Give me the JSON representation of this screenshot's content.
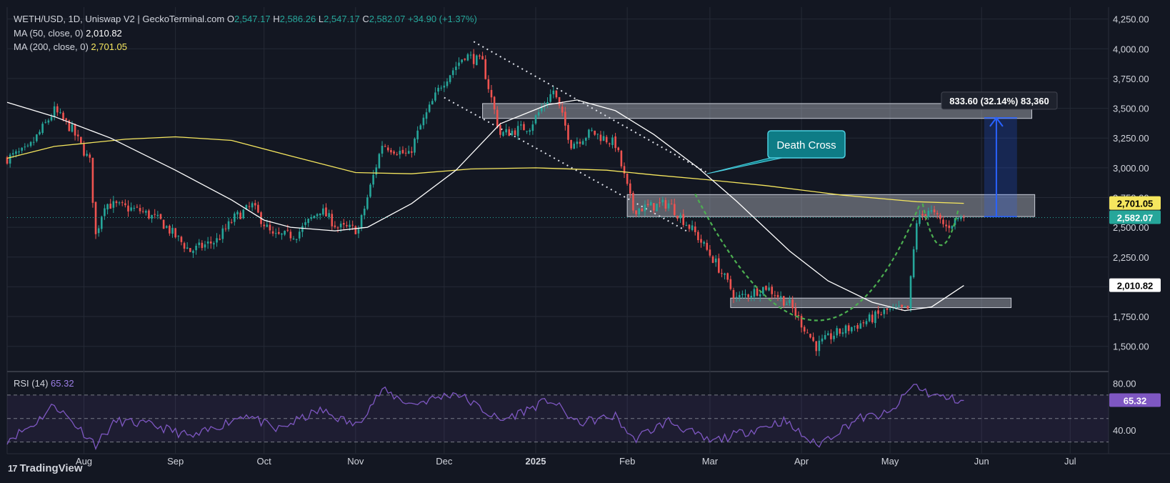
{
  "header": {
    "symbol": "WETH/USD, 1D, Uniswap V2 | GeckoTerminal.com",
    "o_label": "O",
    "o_value": "2,547.17",
    "h_label": "H",
    "h_value": "2,586.26",
    "l_label": "L",
    "l_value": "2,547.17",
    "c_label": "C",
    "c_value": "2,582.07",
    "change": "+34.90 (+1.37%)",
    "ma50_label": "MA (50, close, 0)",
    "ma50_value": "2,010.82",
    "ma200_label": "MA (200, close, 0)",
    "ma200_value": "2,701.05"
  },
  "rsi": {
    "label": "RSI (14)",
    "value": "65.32"
  },
  "brand": {
    "logo": "17",
    "name": "TradingView"
  },
  "colors": {
    "background": "#131722",
    "grid": "#252a36",
    "up": "#26a69a",
    "down": "#ef5350",
    "ma50": "#ffffff",
    "ma200": "#f5e65e",
    "rsi": "#7e57c2",
    "arrow": "#2962ff",
    "callout": "#0e7c86",
    "pattern": "#4caf50",
    "zone": "#787b86"
  },
  "chart_data": {
    "type": "candlestick",
    "x_range": [
      "2024-07-06",
      "2025-07-14"
    ],
    "ylim": [
      1300,
      4350
    ],
    "y_ticks": [
      1500,
      1750,
      2000,
      2250,
      2500,
      2750,
      3000,
      3250,
      3500,
      3750,
      4000,
      4250
    ],
    "y_tick_labels": [
      "1,500.00",
      "1,750.00",
      "2,000.00",
      "2,250.00",
      "2,500.00",
      "2,750.00",
      "3,000.00",
      "3,250.00",
      "3,500.00",
      "3,750.00",
      "4,000.00",
      "4,250.00"
    ],
    "x_ticks": [
      {
        "date": "2024-08-01",
        "label": "Aug"
      },
      {
        "date": "2024-09-01",
        "label": "Sep"
      },
      {
        "date": "2024-10-01",
        "label": "Oct"
      },
      {
        "date": "2024-11-01",
        "label": "Nov"
      },
      {
        "date": "2024-12-01",
        "label": "Dec"
      },
      {
        "date": "2025-01-01",
        "label": "2025"
      },
      {
        "date": "2025-02-01",
        "label": "Feb"
      },
      {
        "date": "2025-03-01",
        "label": "Mar"
      },
      {
        "date": "2025-04-01",
        "label": "Apr"
      },
      {
        "date": "2025-05-01",
        "label": "May"
      },
      {
        "date": "2025-06-01",
        "label": "Jun"
      },
      {
        "date": "2025-07-01",
        "label": "Jul"
      }
    ],
    "close_path": [
      [
        "2024-07-06",
        3080
      ],
      [
        "2024-07-13",
        3150
      ],
      [
        "2024-07-22",
        3480
      ],
      [
        "2024-07-28",
        3320
      ],
      [
        "2024-08-03",
        3050
      ],
      [
        "2024-08-05",
        2430
      ],
      [
        "2024-08-08",
        2700
      ],
      [
        "2024-08-20",
        2640
      ],
      [
        "2024-08-27",
        2550
      ],
      [
        "2024-09-06",
        2300
      ],
      [
        "2024-09-15",
        2390
      ],
      [
        "2024-09-21",
        2580
      ],
      [
        "2024-09-27",
        2680
      ],
      [
        "2024-10-04",
        2420
      ],
      [
        "2024-10-12",
        2440
      ],
      [
        "2024-10-20",
        2650
      ],
      [
        "2024-10-26",
        2500
      ],
      [
        "2024-11-02",
        2480
      ],
      [
        "2024-11-10",
        3200
      ],
      [
        "2024-11-19",
        3100
      ],
      [
        "2024-11-23",
        3350
      ],
      [
        "2024-11-30",
        3700
      ],
      [
        "2024-12-08",
        3950
      ],
      [
        "2024-12-14",
        3880
      ],
      [
        "2024-12-20",
        3280
      ],
      [
        "2024-12-30",
        3350
      ],
      [
        "2025-01-07",
        3650
      ],
      [
        "2025-01-13",
        3200
      ],
      [
        "2025-01-20",
        3300
      ],
      [
        "2025-01-28",
        3200
      ],
      [
        "2025-02-03",
        2650
      ],
      [
        "2025-02-15",
        2700
      ],
      [
        "2025-02-24",
        2450
      ],
      [
        "2025-03-03",
        2200
      ],
      [
        "2025-03-10",
        1900
      ],
      [
        "2025-03-20",
        2000
      ],
      [
        "2025-03-28",
        1850
      ],
      [
        "2025-04-06",
        1500
      ],
      [
        "2025-04-12",
        1600
      ],
      [
        "2025-04-22",
        1700
      ],
      [
        "2025-04-30",
        1800
      ],
      [
        "2025-05-07",
        1810
      ],
      [
        "2025-05-10",
        2550
      ],
      [
        "2025-05-14",
        2650
      ],
      [
        "2025-05-20",
        2500
      ],
      [
        "2025-05-24",
        2580
      ],
      [
        "2025-05-26",
        2582.07
      ]
    ],
    "series": [
      {
        "name": "MA (50, close, 0)",
        "values": [
          [
            "2024-07-06",
            3550
          ],
          [
            "2024-07-22",
            3430
          ],
          [
            "2024-08-10",
            3250
          ],
          [
            "2024-09-01",
            2980
          ],
          [
            "2024-09-20",
            2730
          ],
          [
            "2024-10-01",
            2560
          ],
          [
            "2024-10-10",
            2500
          ],
          [
            "2024-10-25",
            2470
          ],
          [
            "2024-11-05",
            2500
          ],
          [
            "2024-11-20",
            2700
          ],
          [
            "2024-12-05",
            2980
          ],
          [
            "2024-12-20",
            3370
          ],
          [
            "2025-01-05",
            3530
          ],
          [
            "2025-01-15",
            3570
          ],
          [
            "2025-01-28",
            3480
          ],
          [
            "2025-02-10",
            3280
          ],
          [
            "2025-02-25",
            3000
          ],
          [
            "2025-03-10",
            2720
          ],
          [
            "2025-03-28",
            2300
          ],
          [
            "2025-04-10",
            2050
          ],
          [
            "2025-04-25",
            1870
          ],
          [
            "2025-05-06",
            1800
          ],
          [
            "2025-05-15",
            1830
          ],
          [
            "2025-05-26",
            2010.82
          ]
        ]
      },
      {
        "name": "MA (200, close, 0)",
        "values": [
          [
            "2024-07-06",
            3080
          ],
          [
            "2024-07-22",
            3180
          ],
          [
            "2024-08-15",
            3240
          ],
          [
            "2024-09-01",
            3260
          ],
          [
            "2024-09-20",
            3230
          ],
          [
            "2024-10-10",
            3100
          ],
          [
            "2024-11-01",
            2960
          ],
          [
            "2024-11-20",
            2950
          ],
          [
            "2024-12-10",
            2990
          ],
          [
            "2025-01-01",
            3000
          ],
          [
            "2025-01-25",
            2980
          ],
          [
            "2025-02-10",
            2940
          ],
          [
            "2025-02-28",
            2900
          ],
          [
            "2025-03-20",
            2850
          ],
          [
            "2025-04-15",
            2770
          ],
          [
            "2025-05-10",
            2715
          ],
          [
            "2025-05-26",
            2701.05
          ]
        ]
      }
    ],
    "rsi_ylim": [
      20,
      90
    ],
    "rsi_ticks": [
      {
        "value": 80,
        "label": "80.00"
      },
      {
        "value": 40,
        "label": "40.00"
      }
    ],
    "rsi_bands": [
      70,
      50,
      30
    ],
    "rsi_path": [
      [
        "2024-07-06",
        32
      ],
      [
        "2024-07-15",
        45
      ],
      [
        "2024-07-22",
        62
      ],
      [
        "2024-08-05",
        28
      ],
      [
        "2024-08-12",
        48
      ],
      [
        "2024-08-25",
        44
      ],
      [
        "2024-09-07",
        34
      ],
      [
        "2024-09-25",
        54
      ],
      [
        "2024-10-05",
        40
      ],
      [
        "2024-10-20",
        57
      ],
      [
        "2024-11-01",
        44
      ],
      [
        "2024-11-10",
        74
      ],
      [
        "2024-11-20",
        62
      ],
      [
        "2024-12-05",
        72
      ],
      [
        "2024-12-20",
        48
      ],
      [
        "2025-01-06",
        66
      ],
      [
        "2025-01-15",
        46
      ],
      [
        "2025-01-28",
        52
      ],
      [
        "2025-02-03",
        32
      ],
      [
        "2025-02-15",
        48
      ],
      [
        "2025-03-01",
        30
      ],
      [
        "2025-03-15",
        40
      ],
      [
        "2025-03-26",
        48
      ],
      [
        "2025-04-06",
        27
      ],
      [
        "2025-04-20",
        50
      ],
      [
        "2025-05-01",
        54
      ],
      [
        "2025-05-09",
        79
      ],
      [
        "2025-05-15",
        70
      ],
      [
        "2025-05-21",
        67
      ],
      [
        "2025-05-26",
        65.32
      ]
    ],
    "zones": [
      {
        "from": "2024-12-14",
        "to": "2025-06-18",
        "low": 3415,
        "high": 3540
      },
      {
        "from": "2025-02-01",
        "to": "2025-06-19",
        "low": 2590,
        "high": 2775
      },
      {
        "from": "2025-03-08",
        "to": "2025-06-11",
        "low": 1825,
        "high": 1905
      }
    ],
    "channel": [
      {
        "from": [
          "2024-12-11",
          4060
        ],
        "to": [
          "2025-02-28",
          2960
        ]
      },
      {
        "from": [
          "2024-12-01",
          3590
        ],
        "to": [
          "2025-02-21",
          2470
        ]
      }
    ],
    "price_labels": [
      {
        "value": 2701.05,
        "text": "2,701.05",
        "bg": "#f5e65e",
        "fg": "#000000"
      },
      {
        "value": 2582.07,
        "text": "2,582.07",
        "bg": "#26a69a",
        "fg": "#ffffff"
      },
      {
        "value": 2010.82,
        "text": "2,010.82",
        "bg": "#ffffff",
        "fg": "#000000"
      }
    ],
    "rsi_label": {
      "value": 65.32,
      "text": "65.32"
    },
    "annotations": {
      "death_cross": {
        "text": "Death Cross",
        "at": [
          "2025-02-28",
          2950
        ]
      },
      "measure": {
        "text": "833.60 (32.14%) 83,360",
        "date": "2025-06-06",
        "from": 2590,
        "to": 3420,
        "box_to": "2025-06-13"
      }
    }
  }
}
